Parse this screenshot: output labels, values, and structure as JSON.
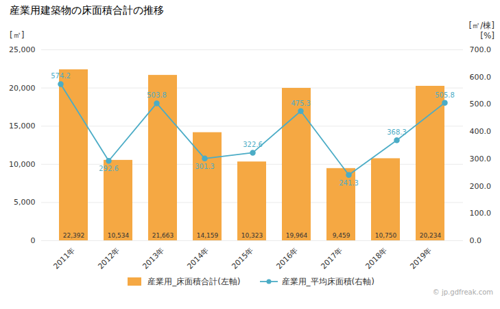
{
  "chart_data": {
    "type": "bar",
    "title": "産業用建築物の床面積合計の推移",
    "categories": [
      "2011年",
      "2012年",
      "2013年",
      "2014年",
      "2015年",
      "2016年",
      "2017年",
      "2018年",
      "2019年"
    ],
    "series": [
      {
        "name": "産業用_床面積合計(左軸)",
        "type": "bar",
        "color": "#f5a843",
        "values": [
          22392,
          10534,
          21663,
          14159,
          10323,
          19964,
          9459,
          10750,
          20234
        ],
        "value_labels": [
          "22,392",
          "10,534",
          "21,663",
          "14,159",
          "10,323",
          "19,964",
          "9,459",
          "10,750",
          "20,234"
        ]
      },
      {
        "name": "産業用_平均床面積(右軸)",
        "type": "line",
        "axis": "y2",
        "color": "#4bacc6",
        "marker": "circle",
        "values": [
          574.2,
          292.6,
          503.8,
          301.3,
          322.6,
          475.3,
          241.3,
          368.3,
          505.8
        ]
      }
    ],
    "ylabel": "[㎡]",
    "y2label": "[㎡/棟]",
    "annotations": [
      "[%]",
      "© jp.gdfreak.com"
    ],
    "ylim": [
      0,
      25000
    ],
    "yticks": [
      0,
      {
        "value": 5000,
        "label": "5,000"
      },
      {
        "value": 10000,
        "label": "10,000"
      },
      {
        "value": 15000,
        "label": "15,000"
      },
      {
        "value": 20000,
        "label": "20,000"
      },
      {
        "value": 25000,
        "label": "25,000"
      }
    ],
    "y2lim": [
      0,
      700
    ],
    "y2ticks": [
      {
        "value": 0,
        "label": "0.0"
      },
      {
        "value": 100,
        "label": "100.0"
      },
      {
        "value": 200,
        "label": "200.0"
      },
      {
        "value": 300,
        "label": "300.0"
      },
      {
        "value": 400,
        "label": "400.0"
      },
      {
        "value": 500,
        "label": "500.0"
      },
      {
        "value": 600,
        "label": "600.0"
      },
      {
        "value": 700,
        "label": "700.0"
      }
    ],
    "grid": true,
    "legend": "bottom",
    "data_labels": true
  }
}
